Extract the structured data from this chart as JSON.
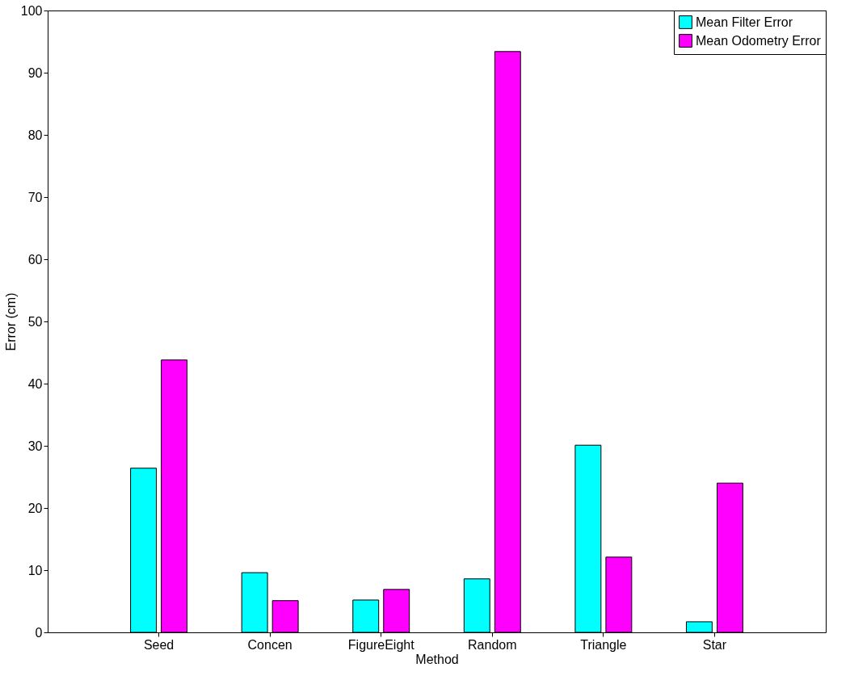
{
  "chart_data": {
    "type": "bar",
    "xlabel": "Method",
    "ylabel": "Error (cm)",
    "categories": [
      "Seed",
      "Concen",
      "FigureEight",
      "Random",
      "Triangle",
      "Star"
    ],
    "series": [
      {
        "name": "Mean Filter Error",
        "color": "#00ffff",
        "values": [
          26.4,
          9.6,
          5.2,
          8.6,
          30.1,
          1.7
        ]
      },
      {
        "name": "Mean Odometry Error",
        "color": "#ff00ff",
        "values": [
          43.8,
          5.1,
          6.9,
          93.4,
          12.1,
          24
        ]
      }
    ],
    "ylim": [
      0,
      100
    ],
    "yticks": [
      0,
      10,
      20,
      30,
      40,
      50,
      60,
      70,
      80,
      90,
      100
    ],
    "grid": false,
    "legend": "top right"
  }
}
